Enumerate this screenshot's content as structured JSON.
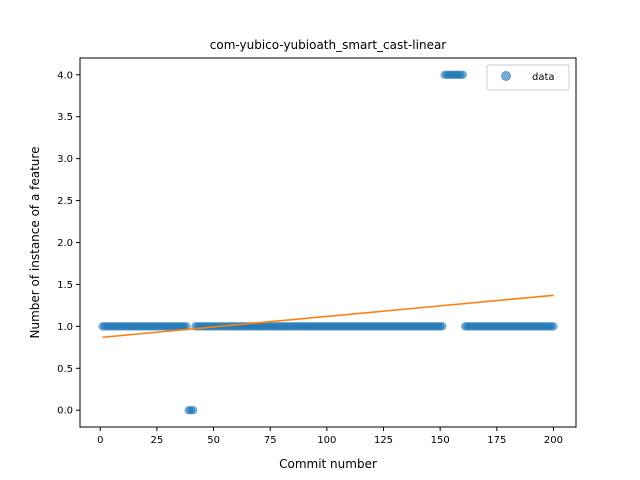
{
  "chart_data": {
    "type": "scatter",
    "title": "com-yubico-yubioath_smart_cast-linear",
    "xlabel": "Commit number",
    "ylabel": "Number of instance of a feature",
    "xlim": [
      -8.95,
      209.95
    ],
    "ylim": [
      -0.2,
      4.2
    ],
    "xticks": [
      0,
      25,
      50,
      75,
      100,
      125,
      150,
      175,
      200
    ],
    "xtick_labels": [
      "0",
      "25",
      "50",
      "75",
      "100",
      "125",
      "150",
      "175",
      "200"
    ],
    "yticks": [
      0.0,
      0.5,
      1.0,
      1.5,
      2.0,
      2.5,
      3.0,
      3.5,
      4.0
    ],
    "ytick_labels": [
      "0.0",
      "0.5",
      "1.0",
      "1.5",
      "2.0",
      "2.5",
      "3.0",
      "3.5",
      "4.0"
    ],
    "grid": false,
    "legend_position": "top-right",
    "series": [
      {
        "name": "data",
        "kind": "scatter",
        "color": "#1f77b4",
        "segments": [
          {
            "x_from": 1,
            "x_to": 38,
            "y": 1
          },
          {
            "x_from": 39,
            "x_to": 41,
            "y": 0
          },
          {
            "x_from": 42,
            "x_to": 151,
            "y": 1
          },
          {
            "x_from": 152,
            "x_to": 160,
            "y": 4
          },
          {
            "x_from": 161,
            "x_to": 200,
            "y": 1
          }
        ]
      },
      {
        "name": "",
        "kind": "line",
        "color": "#ff7f0e",
        "x": [
          1,
          200
        ],
        "y": [
          0.87,
          1.37
        ]
      }
    ]
  }
}
